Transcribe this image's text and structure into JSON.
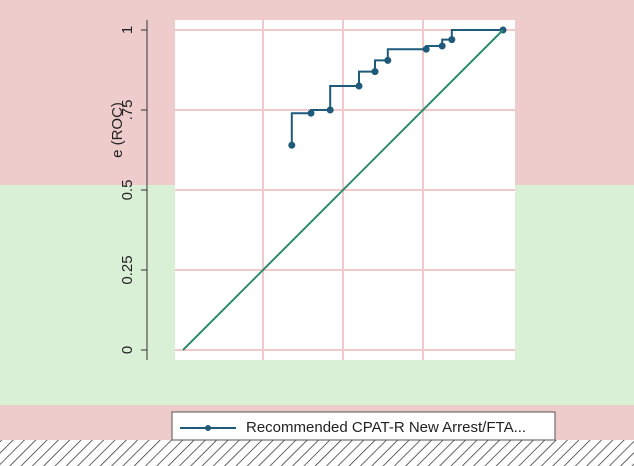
{
  "chart_data": {
    "type": "line",
    "y_label": "e (ROC)",
    "xlim": [
      0,
      1
    ],
    "ylim": [
      0,
      1
    ],
    "yticks": [
      0,
      0.25,
      0.5,
      {
        "value": 0.75,
        "label": ".75"
      },
      1
    ],
    "grid": true,
    "legend": "bottom",
    "series": [
      {
        "name": "Recommended CPAT-R New Arrest/FTA...",
        "color": "#1f5a7a",
        "step": true,
        "markers": true,
        "x": [
          0.34,
          0.4,
          0.46,
          0.55,
          0.6,
          0.64,
          0.76,
          0.81,
          0.84,
          1
        ],
        "values": [
          0.64,
          0.74,
          0.75,
          0.825,
          0.87,
          0.905,
          0.94,
          0.95,
          0.97,
          1
        ]
      },
      {
        "color": "#2e8b6e",
        "step": false,
        "markers": false,
        "x": [
          0,
          1
        ],
        "values": [
          0,
          1
        ]
      }
    ]
  }
}
